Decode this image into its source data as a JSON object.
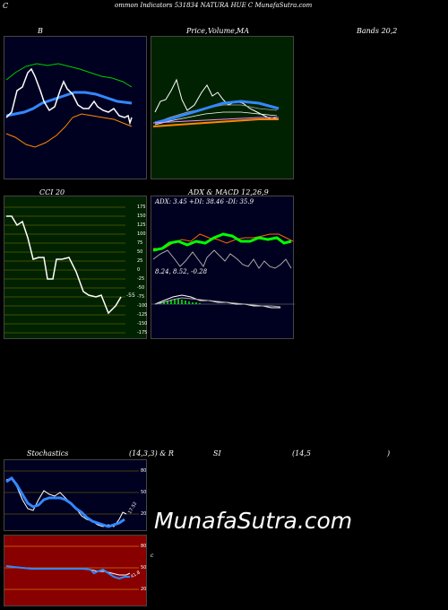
{
  "header": {
    "left": "C",
    "title": "ommon  Indicators 531834  NATURA HUE C MunafaSutra.com"
  },
  "bollinger": {
    "label": "B",
    "title_right": "Bands 20,2",
    "bg": "#000020"
  },
  "price": {
    "label_a": "Price,",
    "label_b": "Volume,",
    "label_c": "MA",
    "bg": "#002200"
  },
  "cci": {
    "title": "CCI 20",
    "ticks": [
      "175",
      "150",
      "125",
      "100",
      "75",
      "50",
      "25",
      "0",
      "-25",
      "-50",
      "-75",
      "-100",
      "-125",
      "-150",
      "-175"
    ],
    "value_label": "-55",
    "bg": "#002200",
    "line_color": "#ffffff"
  },
  "adx_macd": {
    "title": "ADX  & MACD 12,26,9",
    "adx_text": "ADX: 3.45  +DI: 38.46  -DI: 35.9",
    "macd_text": "8.24,  8.52,  -0.28",
    "bg": "#000020"
  },
  "stochastics": {
    "title_a": "Stochastics",
    "title_b": "(14,3,3) & R",
    "title_c": "SI",
    "title_d": "(14,5",
    "title_e": ")",
    "ticks": [
      "80",
      "50",
      "20"
    ],
    "value_label": "17.52",
    "bg": "#000020"
  },
  "rsi": {
    "ticks": [
      "80",
      "50",
      "20"
    ],
    "value_label": "41.8",
    "right_mark": "c",
    "bg": "#880000"
  },
  "watermark": "MunafaSutra.com",
  "colors": {
    "green": "#00ff00",
    "blue": "#3388ff",
    "orange": "#ff8800",
    "gray": "#aaaaaa"
  }
}
